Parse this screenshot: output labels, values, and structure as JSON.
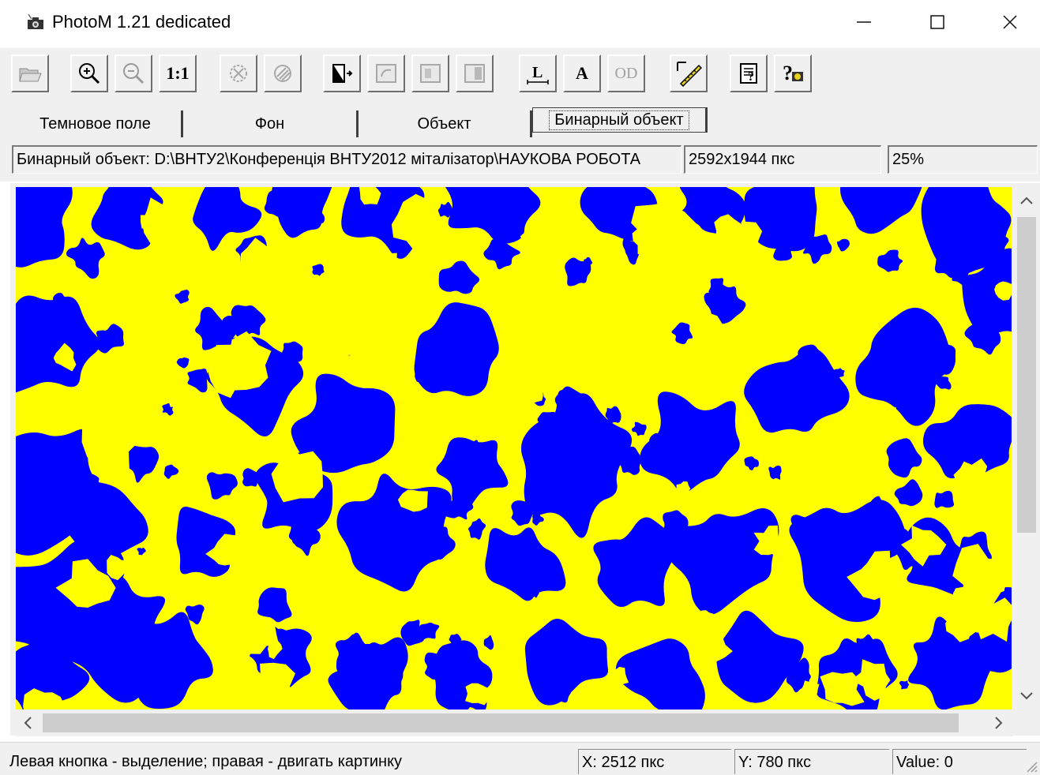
{
  "window": {
    "title": "PhotoM 1.21 dedicated",
    "app_icon": "camera-icon",
    "controls": {
      "minimize": "—",
      "maximize": "☐",
      "close": "✕"
    }
  },
  "toolbar": {
    "zoom_actual_label": "1:1",
    "text_tool_label": "A",
    "od_label": "OD",
    "length_label": "L",
    "icons": [
      "open-icon",
      "zoom-in-icon",
      "zoom-out-icon",
      "zoom-actual-icon",
      "erase-icon",
      "fill-icon",
      "image-export-icon",
      "image-rotate-icon",
      "image-copy-icon",
      "image-mirror-icon",
      "measure-length-icon",
      "text-icon",
      "optical-density-icon",
      "ruler-icon",
      "help-icon",
      "about-icon"
    ]
  },
  "tabs": [
    {
      "label": "Темновое поле",
      "active": false
    },
    {
      "label": "Фон",
      "active": false
    },
    {
      "label": "Объект",
      "active": false
    },
    {
      "label": "Бинарный объект",
      "active": true
    }
  ],
  "info": {
    "path": "Бинарный объект: D:\\ВНТУ2\\Конференція ВНТУ2012 міталізатор\\НАУКОВА  РОБОТА",
    "size": "2592x1944 пкс",
    "zoom": "25%"
  },
  "image": {
    "foreground_color": "#0000ff",
    "background_color": "#ffff00"
  },
  "status": {
    "hint": "Левая кнопка - выделение; правая - двигать картинку",
    "x": "X: 2512 пкс",
    "y": "Y: 780 пкс",
    "value": "Value: 0"
  }
}
